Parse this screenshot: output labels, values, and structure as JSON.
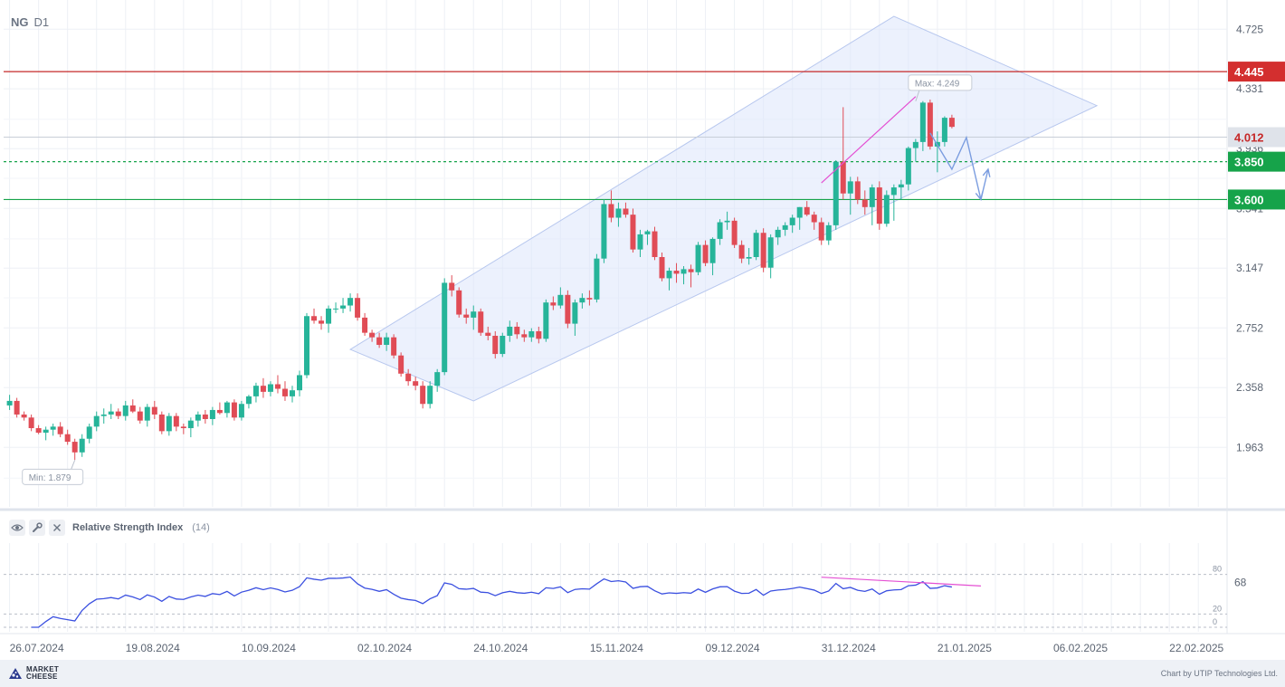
{
  "header": {
    "symbol": "NG",
    "timeframe": "D1"
  },
  "chart_data": {
    "type": "candlestick",
    "price_axis": {
      "ticks": [
        4.725,
        4.331,
        3.936,
        3.541,
        3.147,
        2.752,
        2.358,
        1.963
      ],
      "ylim": [
        1.57,
        4.87
      ]
    },
    "x_axis": {
      "date_labels": [
        "26.07.2024",
        "19.08.2024",
        "10.09.2024",
        "02.10.2024",
        "24.10.2024",
        "15.11.2024",
        "09.12.2024",
        "31.12.2024",
        "21.01.2025",
        "06.02.2025",
        "22.02.2025"
      ],
      "label_index": [
        0,
        16,
        32,
        48,
        64,
        80,
        96,
        112,
        128,
        144,
        160
      ]
    },
    "candles": [
      [
        2.24,
        2.31,
        2.21,
        2.27
      ],
      [
        2.27,
        2.29,
        2.16,
        2.18
      ],
      [
        2.18,
        2.2,
        2.14,
        2.16
      ],
      [
        2.16,
        2.18,
        2.07,
        2.09
      ],
      [
        2.09,
        2.11,
        2.05,
        2.06
      ],
      [
        2.06,
        2.1,
        2.01,
        2.08
      ],
      [
        2.08,
        2.12,
        2.04,
        2.1
      ],
      [
        2.1,
        2.13,
        2.03,
        2.05
      ],
      [
        2.05,
        2.08,
        1.98,
        2.0
      ],
      [
        2.0,
        2.02,
        1.88,
        1.93
      ],
      [
        1.93,
        2.05,
        1.9,
        2.02
      ],
      [
        2.02,
        2.12,
        1.99,
        2.1
      ],
      [
        2.1,
        2.2,
        2.07,
        2.17
      ],
      [
        2.17,
        2.22,
        2.12,
        2.18
      ],
      [
        2.18,
        2.25,
        2.15,
        2.2
      ],
      [
        2.2,
        2.22,
        2.15,
        2.17
      ],
      [
        2.17,
        2.27,
        2.14,
        2.24
      ],
      [
        2.24,
        2.28,
        2.19,
        2.2
      ],
      [
        2.2,
        2.23,
        2.12,
        2.14
      ],
      [
        2.14,
        2.25,
        2.1,
        2.23
      ],
      [
        2.23,
        2.27,
        2.15,
        2.18
      ],
      [
        2.18,
        2.2,
        2.05,
        2.07
      ],
      [
        2.07,
        2.19,
        2.04,
        2.17
      ],
      [
        2.17,
        2.19,
        2.07,
        2.1
      ],
      [
        2.1,
        2.12,
        2.05,
        2.09
      ],
      [
        2.09,
        2.16,
        2.03,
        2.14
      ],
      [
        2.14,
        2.2,
        2.1,
        2.18
      ],
      [
        2.18,
        2.21,
        2.12,
        2.15
      ],
      [
        2.15,
        2.23,
        2.11,
        2.21
      ],
      [
        2.21,
        2.26,
        2.18,
        2.19
      ],
      [
        2.19,
        2.27,
        2.16,
        2.26
      ],
      [
        2.26,
        2.28,
        2.14,
        2.16
      ],
      [
        2.16,
        2.27,
        2.14,
        2.25
      ],
      [
        2.25,
        2.31,
        2.22,
        2.3
      ],
      [
        2.3,
        2.39,
        2.26,
        2.37
      ],
      [
        2.37,
        2.42,
        2.29,
        2.33
      ],
      [
        2.33,
        2.4,
        2.3,
        2.38
      ],
      [
        2.38,
        2.44,
        2.32,
        2.35
      ],
      [
        2.35,
        2.4,
        2.27,
        2.3
      ],
      [
        2.3,
        2.37,
        2.26,
        2.34
      ],
      [
        2.34,
        2.47,
        2.3,
        2.44
      ],
      [
        2.44,
        2.85,
        2.42,
        2.83
      ],
      [
        2.83,
        2.88,
        2.78,
        2.8
      ],
      [
        2.8,
        2.83,
        2.74,
        2.78
      ],
      [
        2.78,
        2.9,
        2.72,
        2.88
      ],
      [
        2.88,
        2.92,
        2.85,
        2.88
      ],
      [
        2.88,
        2.95,
        2.85,
        2.9
      ],
      [
        2.9,
        2.98,
        2.86,
        2.95
      ],
      [
        2.95,
        2.98,
        2.8,
        2.82
      ],
      [
        2.82,
        2.85,
        2.7,
        2.72
      ],
      [
        2.72,
        2.74,
        2.66,
        2.69
      ],
      [
        2.69,
        2.72,
        2.62,
        2.64
      ],
      [
        2.64,
        2.72,
        2.6,
        2.69
      ],
      [
        2.69,
        2.71,
        2.55,
        2.57
      ],
      [
        2.57,
        2.59,
        2.43,
        2.45
      ],
      [
        2.45,
        2.48,
        2.37,
        2.4
      ],
      [
        2.4,
        2.43,
        2.34,
        2.37
      ],
      [
        2.37,
        2.4,
        2.22,
        2.25
      ],
      [
        2.25,
        2.4,
        2.22,
        2.37
      ],
      [
        2.37,
        2.48,
        2.33,
        2.46
      ],
      [
        2.46,
        3.08,
        2.44,
        3.05
      ],
      [
        3.05,
        3.1,
        2.96,
        3.0
      ],
      [
        3.0,
        3.02,
        2.82,
        2.84
      ],
      [
        2.84,
        2.88,
        2.78,
        2.82
      ],
      [
        2.82,
        2.9,
        2.74,
        2.86
      ],
      [
        2.86,
        2.88,
        2.7,
        2.72
      ],
      [
        2.72,
        2.76,
        2.67,
        2.7
      ],
      [
        2.7,
        2.73,
        2.55,
        2.58
      ],
      [
        2.58,
        2.72,
        2.56,
        2.7
      ],
      [
        2.7,
        2.8,
        2.66,
        2.76
      ],
      [
        2.76,
        2.79,
        2.68,
        2.71
      ],
      [
        2.71,
        2.74,
        2.66,
        2.69
      ],
      [
        2.69,
        2.75,
        2.66,
        2.73
      ],
      [
        2.73,
        2.76,
        2.65,
        2.68
      ],
      [
        2.68,
        2.94,
        2.66,
        2.92
      ],
      [
        2.92,
        2.96,
        2.87,
        2.9
      ],
      [
        2.9,
        3.02,
        2.88,
        2.97
      ],
      [
        2.97,
        3.0,
        2.75,
        2.78
      ],
      [
        2.78,
        2.94,
        2.7,
        2.92
      ],
      [
        2.92,
        2.98,
        2.88,
        2.95
      ],
      [
        2.95,
        3.0,
        2.9,
        2.94
      ],
      [
        2.94,
        3.24,
        2.92,
        3.21
      ],
      [
        3.21,
        3.6,
        3.18,
        3.57
      ],
      [
        3.57,
        3.66,
        3.45,
        3.48
      ],
      [
        3.48,
        3.58,
        3.42,
        3.54
      ],
      [
        3.54,
        3.58,
        3.48,
        3.5
      ],
      [
        3.5,
        3.54,
        3.25,
        3.27
      ],
      [
        3.27,
        3.4,
        3.22,
        3.37
      ],
      [
        3.37,
        3.4,
        3.3,
        3.39
      ],
      [
        3.39,
        3.42,
        3.2,
        3.22
      ],
      [
        3.22,
        3.25,
        3.06,
        3.08
      ],
      [
        3.08,
        3.15,
        3.0,
        3.13
      ],
      [
        3.13,
        3.18,
        3.05,
        3.11
      ],
      [
        3.11,
        3.16,
        3.04,
        3.14
      ],
      [
        3.14,
        3.17,
        3.02,
        3.12
      ],
      [
        3.12,
        3.32,
        3.1,
        3.3
      ],
      [
        3.3,
        3.33,
        3.16,
        3.18
      ],
      [
        3.18,
        3.35,
        3.1,
        3.34
      ],
      [
        3.34,
        3.47,
        3.3,
        3.45
      ],
      [
        3.45,
        3.52,
        3.4,
        3.46
      ],
      [
        3.46,
        3.48,
        3.28,
        3.3
      ],
      [
        3.3,
        3.33,
        3.18,
        3.21
      ],
      [
        3.21,
        3.28,
        3.17,
        3.22
      ],
      [
        3.22,
        3.4,
        3.2,
        3.38
      ],
      [
        3.38,
        3.41,
        3.12,
        3.15
      ],
      [
        3.15,
        3.37,
        3.08,
        3.35
      ],
      [
        3.35,
        3.42,
        3.3,
        3.4
      ],
      [
        3.4,
        3.45,
        3.36,
        3.43
      ],
      [
        3.43,
        3.5,
        3.38,
        3.48
      ],
      [
        3.48,
        3.55,
        3.4,
        3.55
      ],
      [
        3.55,
        3.59,
        3.49,
        3.5
      ],
      [
        3.5,
        3.52,
        3.4,
        3.45
      ],
      [
        3.45,
        3.48,
        3.3,
        3.33
      ],
      [
        3.33,
        3.45,
        3.3,
        3.43
      ],
      [
        3.43,
        3.86,
        3.4,
        3.85
      ],
      [
        3.85,
        4.21,
        3.6,
        3.64
      ],
      [
        3.64,
        3.75,
        3.5,
        3.72
      ],
      [
        3.72,
        3.75,
        3.57,
        3.6
      ],
      [
        3.6,
        3.66,
        3.5,
        3.55
      ],
      [
        3.55,
        3.7,
        3.43,
        3.68
      ],
      [
        3.68,
        3.72,
        3.4,
        3.44
      ],
      [
        3.44,
        3.66,
        3.42,
        3.63
      ],
      [
        3.63,
        3.7,
        3.46,
        3.68
      ],
      [
        3.68,
        3.73,
        3.6,
        3.7
      ],
      [
        3.7,
        3.95,
        3.66,
        3.94
      ],
      [
        3.94,
        4.0,
        3.85,
        3.98
      ],
      [
        3.98,
        4.25,
        3.92,
        4.24
      ],
      [
        4.24,
        4.26,
        3.93,
        3.95
      ],
      [
        3.95,
        4.05,
        3.78,
        3.98
      ],
      [
        3.98,
        4.15,
        3.95,
        4.14
      ],
      [
        4.14,
        4.16,
        4.07,
        4.08
      ]
    ],
    "levels": [
      {
        "value": 4.445,
        "label": "4.445",
        "color": "#c62828",
        "style": "solid"
      },
      {
        "value": 3.85,
        "label": "3.850",
        "color": "#16a34a",
        "style": "dashed"
      },
      {
        "value": 3.6,
        "label": "3.600",
        "color": "#16a34a",
        "style": "solid"
      }
    ],
    "current_price": {
      "value": 4.012,
      "label": "4.012"
    },
    "max_label": "Max: 4.249",
    "min_label": "Min: 1.879",
    "channel_polygon": [
      [
        47,
        2.61
      ],
      [
        64,
        2.27
      ],
      [
        150,
        4.22
      ],
      [
        122,
        4.81
      ]
    ],
    "resistance_trendline": [
      [
        112,
        3.71
      ],
      [
        125,
        4.28
      ]
    ],
    "forecast_path": [
      [
        127,
        4.04
      ],
      [
        130,
        3.8
      ],
      [
        132,
        4.01
      ],
      [
        134,
        3.6
      ],
      [
        135,
        3.8
      ]
    ],
    "colors": {
      "up": "#26b499",
      "down": "#e04c56",
      "channel_fill": "#dde6fb",
      "channel_edge": "#b7c7ee",
      "divergence": "#e44fd3",
      "forecast": "#7b9de0",
      "rsi_line": "#3b50e0"
    },
    "rsi": {
      "title": "Relative Strength Index",
      "param": "(14)",
      "period": 14,
      "current": {
        "value": 68,
        "label": "68"
      },
      "levels": [
        80,
        20,
        0
      ],
      "divergence_line": [
        [
          112,
          75.8
        ],
        [
          134,
          62.5
        ]
      ]
    }
  },
  "footer": {
    "logo_line1": "MARKET",
    "logo_line2": "CHEESE",
    "credit": "Chart by UTIP Technologies Ltd."
  }
}
